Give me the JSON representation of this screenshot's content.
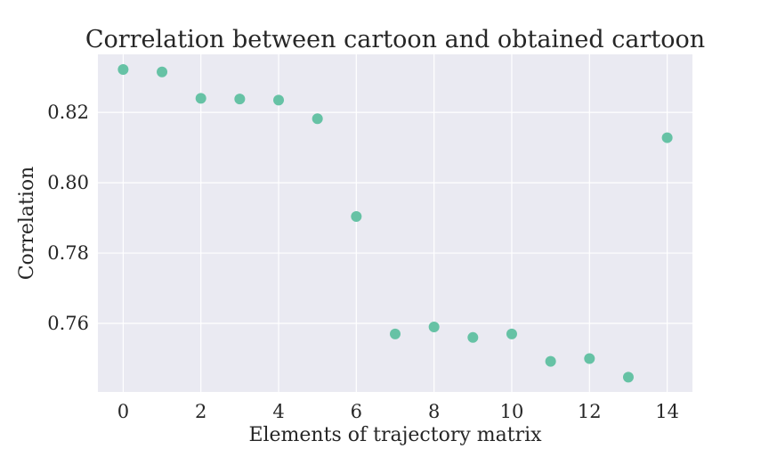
{
  "chart_data": {
    "type": "scatter",
    "title": "Correlation between cartoon and obtained cartoon",
    "xlabel": "Elements of trajectory matrix",
    "ylabel": "Correlation",
    "x": [
      0,
      1,
      2,
      3,
      4,
      5,
      6,
      7,
      8,
      9,
      10,
      11,
      12,
      13,
      14
    ],
    "y": [
      0.8322,
      0.8315,
      0.824,
      0.8238,
      0.8235,
      0.8182,
      0.7904,
      0.757,
      0.759,
      0.756,
      0.757,
      0.7492,
      0.75,
      0.7447,
      0.8128
    ],
    "xlim": [
      -0.65,
      14.65
    ],
    "ylim": [
      0.7405,
      0.8365
    ],
    "xticks": [
      0,
      2,
      4,
      6,
      8,
      10,
      12,
      14
    ],
    "xtick_labels": [
      "0",
      "2",
      "4",
      "6",
      "8",
      "10",
      "12",
      "14"
    ],
    "yticks": [
      0.76,
      0.78,
      0.8,
      0.82
    ],
    "ytick_labels": [
      "0.76",
      "0.78",
      "0.80",
      "0.82"
    ],
    "grid": true,
    "point_color": "#66c2a5",
    "background_color": "#eaeaf2"
  }
}
